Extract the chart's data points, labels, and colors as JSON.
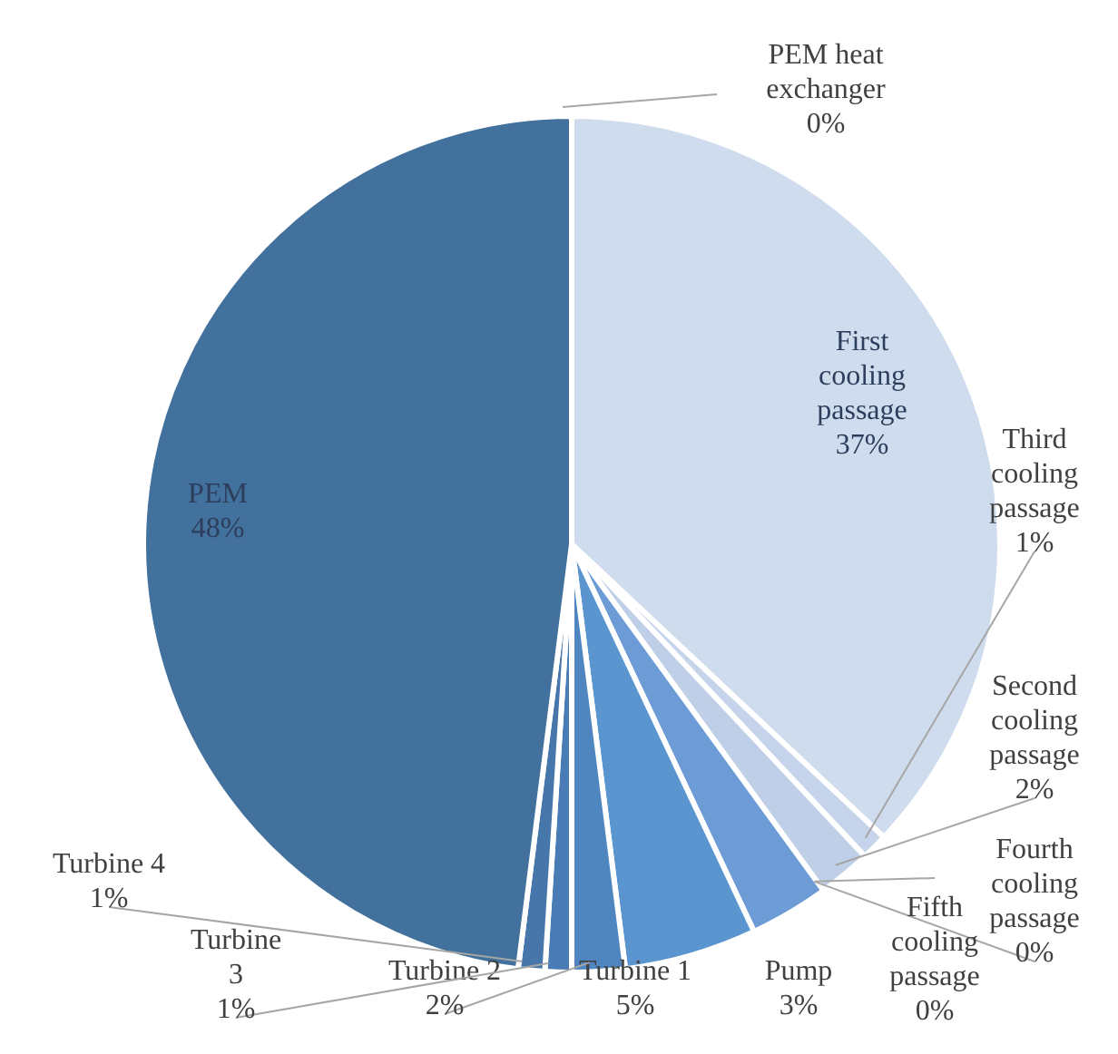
{
  "chart_data": {
    "type": "pie",
    "categories": [
      "PEM heat exchanger",
      "First cooling passage",
      "Third cooling passage",
      "Second cooling passage",
      "Fourth cooling passage",
      "Fifth cooling passage",
      "Pump",
      "Turbine 1",
      "Turbine 2",
      "Turbine 3",
      "Turbine 4",
      "PEM"
    ],
    "values": [
      0,
      37,
      1,
      2,
      0,
      0,
      3,
      5,
      2,
      1,
      1,
      48
    ],
    "colors": [
      "#c5d4ea",
      "#cfdcee",
      "#c5d4ea",
      "#bfcfe8",
      "#b3c6e6",
      "#a3bbe2",
      "#6d9bd6",
      "#5b95d0",
      "#4f86c0",
      "#497cb4",
      "#4676aa",
      "#41719c"
    ],
    "value_labels": [
      "0%",
      "37%",
      "1%",
      "2%",
      "0%",
      "0%",
      "3%",
      "5%",
      "2%",
      "1%",
      "1%",
      "48%"
    ]
  }
}
